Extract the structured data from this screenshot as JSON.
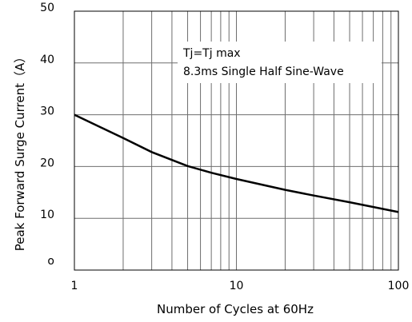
{
  "chart_data": {
    "type": "line",
    "x_scale": "log",
    "xlim": [
      1,
      100
    ],
    "ylim": [
      0,
      50
    ],
    "xlabel": "Number of Cycles at 60Hz",
    "ylabel": "Peak Forward Surge Current（A）",
    "x_ticks": [
      1,
      10,
      100
    ],
    "x_tick_labels": [
      "1",
      "10",
      "100"
    ],
    "y_ticks": [
      0,
      10,
      20,
      30,
      40,
      50
    ],
    "y_tick_labels": [
      "o",
      "10",
      "20",
      "30",
      "40",
      "50"
    ],
    "annotations": [
      "Tj=Tj max",
      "8.3ms Single Half Sine-Wave"
    ],
    "grid": true,
    "series": [
      {
        "x": [
          1,
          2,
          3,
          5,
          7,
          10,
          20,
          30,
          50,
          100
        ],
        "y": [
          30,
          25.5,
          22.8,
          20.1,
          18.8,
          17.6,
          15.5,
          14.4,
          13.1,
          11.2
        ]
      }
    ],
    "colors": {
      "line": "#000000",
      "grid": "#6e6e6e",
      "background": "#ffffff"
    }
  }
}
